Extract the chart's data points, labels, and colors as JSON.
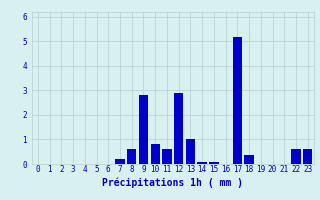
{
  "hours": [
    0,
    1,
    2,
    3,
    4,
    5,
    6,
    7,
    8,
    9,
    10,
    11,
    12,
    13,
    14,
    15,
    16,
    17,
    18,
    19,
    20,
    21,
    22,
    23
  ],
  "values": [
    0,
    0,
    0,
    0,
    0,
    0,
    0,
    0.2,
    0.6,
    2.8,
    0.8,
    0.6,
    2.9,
    1.0,
    0.1,
    0.1,
    0,
    5.2,
    0.35,
    0,
    0,
    0,
    0.6,
    0.6
  ],
  "bar_color": "#0000cc",
  "bg_color": "#d8f0f0",
  "grid_color": "#b8cece",
  "xlabel": "Précipitations 1h ( mm )",
  "xlim": [
    -0.5,
    23.5
  ],
  "ylim": [
    0,
    6.2
  ],
  "yticks": [
    0,
    1,
    2,
    3,
    4,
    5,
    6
  ],
  "tick_color": "#0000bb",
  "label_fontsize": 7,
  "tick_fontsize": 5.5,
  "bar_width": 0.8
}
